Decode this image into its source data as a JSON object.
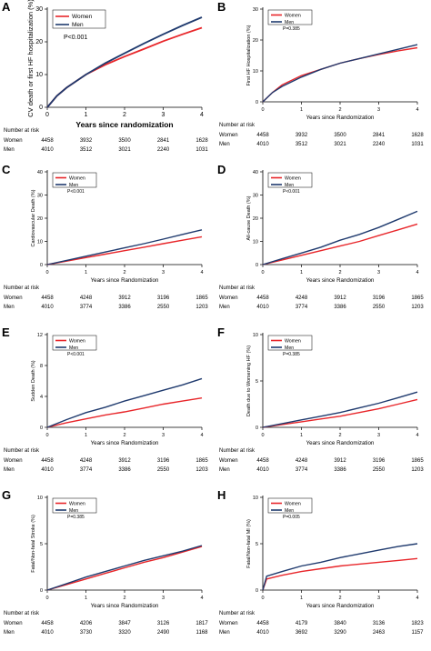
{
  "colors": {
    "women": "#e8262a",
    "men": "#1f3a6e",
    "axis": "#000000"
  },
  "chart_data": [
    {
      "type": "line",
      "panel": "A",
      "ylabel": "CV death or first HF hospitalization (%)",
      "xlabel": "Years since randomization",
      "ylim": [
        0,
        30
      ],
      "yticks": [
        0,
        10,
        20,
        30
      ],
      "xlim": [
        0,
        4
      ],
      "xticks": [
        0,
        1,
        2,
        3,
        4
      ],
      "pvalue": "P<0.001",
      "legend": [
        "Women",
        "Men"
      ],
      "series": [
        {
          "name": "Women",
          "x": [
            0,
            0.25,
            0.5,
            1,
            1.5,
            2,
            2.5,
            3,
            3.5,
            4
          ],
          "y": [
            0,
            3.5,
            6,
            10,
            13,
            15.5,
            17.8,
            20.2,
            22.3,
            24.3
          ]
        },
        {
          "name": "Men",
          "x": [
            0,
            0.25,
            0.5,
            1,
            1.5,
            2,
            2.5,
            3,
            3.5,
            4
          ],
          "y": [
            0,
            3.5,
            6,
            10,
            13.5,
            16.5,
            19.5,
            22.3,
            25,
            27.5
          ]
        }
      ],
      "risk_title": "Number at risk",
      "risk": [
        {
          "label": "Women",
          "values": [
            "4458",
            "3932",
            "3500",
            "2841",
            "1628"
          ]
        },
        {
          "label": "Men",
          "values": [
            "4010",
            "3512",
            "3021",
            "2240",
            "1031"
          ]
        }
      ]
    },
    {
      "type": "line",
      "panel": "B",
      "ylabel": "First HF Hospitalization (%)",
      "xlabel": "Years since Randomization",
      "ylim": [
        0,
        30
      ],
      "yticks": [
        0,
        10,
        20,
        30
      ],
      "xlim": [
        0,
        4
      ],
      "xticks": [
        0,
        1,
        2,
        3,
        4
      ],
      "pvalue": "P=0.385",
      "legend": [
        "Women",
        "Men"
      ],
      "series": [
        {
          "name": "Women",
          "x": [
            0,
            0.25,
            0.5,
            1,
            1.5,
            2,
            2.5,
            3,
            3.5,
            4
          ],
          "y": [
            0,
            3,
            5.5,
            8.5,
            10.5,
            12.5,
            14,
            15.3,
            16.5,
            17.5
          ]
        },
        {
          "name": "Men",
          "x": [
            0,
            0.25,
            0.5,
            1,
            1.5,
            2,
            2.5,
            3,
            3.5,
            4
          ],
          "y": [
            0,
            3,
            5,
            8,
            10.5,
            12.5,
            14,
            15.5,
            17,
            18.5
          ]
        }
      ],
      "risk_title": "Number at risk",
      "risk": [
        {
          "label": "Women",
          "values": [
            "4458",
            "3932",
            "3500",
            "2841",
            "1628"
          ]
        },
        {
          "label": "Men",
          "values": [
            "4010",
            "3512",
            "3021",
            "2240",
            "1031"
          ]
        }
      ]
    },
    {
      "type": "line",
      "panel": "C",
      "ylabel": "Cardiovascular Death (%)",
      "xlabel": "Years since Randomization",
      "ylim": [
        0,
        40
      ],
      "yticks": [
        0,
        10,
        20,
        30,
        40
      ],
      "xlim": [
        0,
        4
      ],
      "xticks": [
        0,
        1,
        2,
        3,
        4
      ],
      "pvalue": "P<0.001",
      "legend": [
        "Women",
        "Men"
      ],
      "series": [
        {
          "name": "Women",
          "x": [
            0,
            0.5,
            1,
            1.5,
            2,
            2.5,
            3,
            3.5,
            4
          ],
          "y": [
            0,
            1.5,
            3,
            4.5,
            6,
            7.5,
            9,
            10.5,
            12
          ]
        },
        {
          "name": "Men",
          "x": [
            0,
            0.5,
            1,
            1.5,
            2,
            2.5,
            3,
            3.5,
            4
          ],
          "y": [
            0,
            1.8,
            3.6,
            5.4,
            7.2,
            9,
            11,
            13,
            15
          ]
        }
      ],
      "risk_title": "Number at risk",
      "risk": [
        {
          "label": "Women",
          "values": [
            "4458",
            "4248",
            "3912",
            "3196",
            "1865"
          ]
        },
        {
          "label": "Men",
          "values": [
            "4010",
            "3774",
            "3386",
            "2550",
            "1203"
          ]
        }
      ]
    },
    {
      "type": "line",
      "panel": "D",
      "ylabel": "All-cause Death (%)",
      "xlabel": "Years since Randomization",
      "ylim": [
        0,
        40
      ],
      "yticks": [
        0,
        10,
        20,
        30,
        40
      ],
      "xlim": [
        0,
        4
      ],
      "xticks": [
        0,
        1,
        2,
        3,
        4
      ],
      "pvalue": "P<0.001",
      "legend": [
        "Women",
        "Men"
      ],
      "series": [
        {
          "name": "Women",
          "x": [
            0,
            0.5,
            1,
            1.5,
            2,
            2.5,
            3,
            3.5,
            4
          ],
          "y": [
            0,
            2,
            4,
            6,
            8,
            10,
            12.5,
            15,
            17.5
          ]
        },
        {
          "name": "Men",
          "x": [
            0,
            0.5,
            1,
            1.5,
            2,
            2.5,
            3,
            3.5,
            4
          ],
          "y": [
            0,
            2.5,
            5,
            7.5,
            10.5,
            13,
            16,
            19.5,
            23
          ]
        }
      ],
      "risk_title": "Number at risk",
      "risk": [
        {
          "label": "Women",
          "values": [
            "4458",
            "4248",
            "3912",
            "3196",
            "1865"
          ]
        },
        {
          "label": "Men",
          "values": [
            "4010",
            "3774",
            "3386",
            "2550",
            "1203"
          ]
        }
      ]
    },
    {
      "type": "line",
      "panel": "E",
      "ylabel": "Sudden Death (%)",
      "xlabel": "Years since Randomization",
      "ylim": [
        0,
        12
      ],
      "yticks": [
        0,
        4,
        8,
        12
      ],
      "xlim": [
        0,
        4
      ],
      "xticks": [
        0,
        1,
        2,
        3,
        4
      ],
      "pvalue": "P<0.001",
      "legend": [
        "Women",
        "Men"
      ],
      "series": [
        {
          "name": "Women",
          "x": [
            0,
            0.5,
            1,
            1.5,
            2,
            2.5,
            3,
            3.5,
            4
          ],
          "y": [
            0,
            0.6,
            1.1,
            1.6,
            2,
            2.5,
            3,
            3.4,
            3.8
          ]
        },
        {
          "name": "Men",
          "x": [
            0,
            0.5,
            1,
            1.5,
            2,
            2.5,
            3,
            3.5,
            4
          ],
          "y": [
            0,
            1,
            1.9,
            2.6,
            3.4,
            4.1,
            4.8,
            5.5,
            6.3
          ]
        }
      ],
      "risk_title": "Number at risk",
      "risk": [
        {
          "label": "Women",
          "values": [
            "4458",
            "4248",
            "3912",
            "3196",
            "1865"
          ]
        },
        {
          "label": "Men",
          "values": [
            "4010",
            "3774",
            "3386",
            "2550",
            "1203"
          ]
        }
      ]
    },
    {
      "type": "line",
      "panel": "F",
      "ylabel": "Death due to Worsening HF (%)",
      "xlabel": "Years since Randomization",
      "ylim": [
        0,
        10
      ],
      "yticks": [
        0,
        5,
        10
      ],
      "xlim": [
        0,
        4
      ],
      "xticks": [
        0,
        1,
        2,
        3,
        4
      ],
      "pvalue": "P=0.385",
      "legend": [
        "Women",
        "Men"
      ],
      "series": [
        {
          "name": "Women",
          "x": [
            0,
            0.5,
            1,
            1.5,
            2,
            2.5,
            3,
            3.5,
            4
          ],
          "y": [
            0,
            0.3,
            0.6,
            0.9,
            1.2,
            1.6,
            2,
            2.5,
            3
          ]
        },
        {
          "name": "Men",
          "x": [
            0,
            0.5,
            1,
            1.5,
            2,
            2.5,
            3,
            3.5,
            4
          ],
          "y": [
            0,
            0.4,
            0.8,
            1.2,
            1.6,
            2.1,
            2.6,
            3.2,
            3.8
          ]
        }
      ],
      "risk_title": "Number at risk",
      "risk": [
        {
          "label": "Women",
          "values": [
            "4458",
            "4248",
            "3912",
            "3196",
            "1865"
          ]
        },
        {
          "label": "Men",
          "values": [
            "4010",
            "3774",
            "3386",
            "2550",
            "1203"
          ]
        }
      ]
    },
    {
      "type": "line",
      "panel": "G",
      "ylabel": "Fatal/Non-fatal Stroke (%)",
      "xlabel": "Years since Randomization",
      "ylim": [
        0,
        10
      ],
      "yticks": [
        0,
        5,
        10
      ],
      "xlim": [
        0,
        4
      ],
      "xticks": [
        0,
        1,
        2,
        3,
        4
      ],
      "pvalue": "P=0.385",
      "legend": [
        "Women",
        "Men"
      ],
      "series": [
        {
          "name": "Women",
          "x": [
            0,
            0.5,
            1,
            1.5,
            2,
            2.5,
            3,
            3.5,
            4
          ],
          "y": [
            0,
            0.6,
            1.2,
            1.8,
            2.4,
            3,
            3.5,
            4.1,
            4.7
          ]
        },
        {
          "name": "Men",
          "x": [
            0,
            0.5,
            1,
            1.5,
            2,
            2.5,
            3,
            3.5,
            4
          ],
          "y": [
            0,
            0.7,
            1.4,
            2,
            2.6,
            3.2,
            3.7,
            4.2,
            4.8
          ]
        }
      ],
      "risk_title": "Number at risk",
      "risk": [
        {
          "label": "Women",
          "values": [
            "4458",
            "4206",
            "3847",
            "3126",
            "1817"
          ]
        },
        {
          "label": "Men",
          "values": [
            "4010",
            "3730",
            "3320",
            "2490",
            "1168"
          ]
        }
      ]
    },
    {
      "type": "line",
      "panel": "H",
      "ylabel": "Fatal/Non-fatal MI (%)",
      "xlabel": "Years since Randomization",
      "ylim": [
        0,
        10
      ],
      "yticks": [
        0,
        5,
        10
      ],
      "xlim": [
        0,
        4
      ],
      "xticks": [
        0,
        1,
        2,
        3,
        4
      ],
      "pvalue": "P=0.005",
      "legend": [
        "Women",
        "Men"
      ],
      "series": [
        {
          "name": "Women",
          "x": [
            0,
            0.1,
            0.5,
            1,
            1.5,
            2,
            2.5,
            3,
            3.5,
            4
          ],
          "y": [
            0,
            1.2,
            1.6,
            2,
            2.3,
            2.6,
            2.8,
            3,
            3.2,
            3.4
          ]
        },
        {
          "name": "Men",
          "x": [
            0,
            0.1,
            0.5,
            1,
            1.5,
            2,
            2.5,
            3,
            3.5,
            4
          ],
          "y": [
            0,
            1.5,
            2,
            2.6,
            3,
            3.5,
            3.9,
            4.3,
            4.7,
            5
          ]
        }
      ],
      "risk_title": "Number at risk",
      "risk": [
        {
          "label": "Women",
          "values": [
            "4458",
            "4179",
            "3840",
            "3136",
            "1823"
          ]
        },
        {
          "label": "Men",
          "values": [
            "4010",
            "3692",
            "3290",
            "2463",
            "1157"
          ]
        }
      ]
    }
  ]
}
